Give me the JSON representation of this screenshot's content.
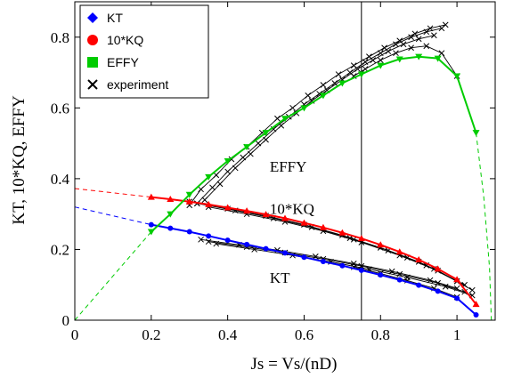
{
  "chart_data": {
    "type": "line",
    "xlabel": "Js = Vs/(nD)",
    "ylabel": "KT,  10*KQ,  EFFY",
    "xlim": [
      0,
      1.1
    ],
    "ylim": [
      0,
      0.9
    ],
    "x_ticks": [
      "0",
      "0.2",
      "0.4",
      "0.6",
      "0.8",
      "1"
    ],
    "y_ticks": [
      "0",
      "0.2",
      "0.4",
      "0.6",
      "0.8"
    ],
    "legend": {
      "placement": "top-left",
      "entries": [
        {
          "label": "KT",
          "color": "#0000ff",
          "marker": "diamond"
        },
        {
          "label": "10*KQ",
          "color": "#ff0000",
          "marker": "circle"
        },
        {
          "label": "EFFY",
          "color": "#00cc00",
          "marker": "square"
        },
        {
          "label": "experiment",
          "color": "#000000",
          "marker": "x"
        }
      ]
    },
    "annotations": [
      {
        "text": "EFFY",
        "x": 0.51,
        "y": 0.42
      },
      {
        "text": "10*KQ",
        "x": 0.51,
        "y": 0.3
      },
      {
        "text": "KT",
        "x": 0.51,
        "y": 0.105
      }
    ],
    "vline_x": 0.75,
    "series": [
      {
        "name": "KT",
        "color": "#0000ff",
        "x": [
          0.2,
          0.25,
          0.3,
          0.35,
          0.4,
          0.45,
          0.5,
          0.55,
          0.6,
          0.65,
          0.7,
          0.75,
          0.8,
          0.85,
          0.9,
          0.95,
          1.0,
          1.05
        ],
        "y": [
          0.27,
          0.26,
          0.25,
          0.238,
          0.226,
          0.214,
          0.202,
          0.19,
          0.178,
          0.166,
          0.154,
          0.141,
          0.128,
          0.114,
          0.099,
          0.082,
          0.062,
          0.015
        ],
        "extrap_x": [
          0,
          0.2
        ],
        "extrap_y": [
          0.32,
          0.27
        ]
      },
      {
        "name": "10*KQ",
        "color": "#ff0000",
        "x": [
          0.2,
          0.25,
          0.3,
          0.35,
          0.4,
          0.45,
          0.5,
          0.55,
          0.6,
          0.65,
          0.7,
          0.75,
          0.8,
          0.85,
          0.9,
          0.95,
          1.0,
          1.05
        ],
        "y": [
          0.348,
          0.342,
          0.335,
          0.327,
          0.318,
          0.309,
          0.299,
          0.288,
          0.275,
          0.262,
          0.247,
          0.231,
          0.213,
          0.193,
          0.171,
          0.145,
          0.115,
          0.045
        ],
        "extrap_x": [
          0,
          0.2
        ],
        "extrap_y": [
          0.372,
          0.348
        ]
      },
      {
        "name": "EFFY",
        "color": "#00cc00",
        "x": [
          0.2,
          0.25,
          0.3,
          0.35,
          0.4,
          0.45,
          0.5,
          0.55,
          0.6,
          0.65,
          0.7,
          0.75,
          0.8,
          0.85,
          0.9,
          0.95,
          1.0,
          1.05
        ],
        "y": [
          0.25,
          0.3,
          0.355,
          0.405,
          0.45,
          0.49,
          0.53,
          0.57,
          0.6,
          0.635,
          0.67,
          0.695,
          0.72,
          0.738,
          0.745,
          0.74,
          0.69,
          0.53
        ],
        "extrap_x": [
          0,
          0.2
        ],
        "extrap_y": [
          0,
          0.25
        ],
        "tail_x": [
          1.05,
          1.07,
          1.085,
          1.09
        ],
        "tail_y": [
          0.53,
          0.35,
          0.15,
          0
        ]
      },
      {
        "name": "experiment",
        "color": "#000000",
        "runs": [
          {
            "effy_x": [
              0.3,
              0.33,
              0.37,
              0.41,
              0.45,
              0.49,
              0.53,
              0.57,
              0.61,
              0.65,
              0.69,
              0.73,
              0.77,
              0.81,
              0.85,
              0.89,
              0.93,
              0.97
            ],
            "effy_y": [
              0.325,
              0.37,
              0.41,
              0.455,
              0.49,
              0.53,
              0.57,
              0.6,
              0.635,
              0.665,
              0.695,
              0.72,
              0.745,
              0.77,
              0.79,
              0.81,
              0.825,
              0.835
            ],
            "kq_x": [
              0.3,
              0.4,
              0.5,
              0.6,
              0.7,
              0.8,
              0.9,
              1.0
            ],
            "kq_y": [
              0.335,
              0.315,
              0.295,
              0.27,
              0.24,
              0.205,
              0.165,
              0.11
            ],
            "kt_x": [
              0.33,
              0.43,
              0.53,
              0.63,
              0.73,
              0.83,
              0.93,
              1.0
            ],
            "kt_y": [
              0.228,
              0.213,
              0.198,
              0.18,
              0.16,
              0.138,
              0.113,
              0.09
            ]
          },
          {
            "effy_x": [
              0.32,
              0.36,
              0.4,
              0.44,
              0.48,
              0.52,
              0.56,
              0.6,
              0.64,
              0.68,
              0.72,
              0.76,
              0.8,
              0.84,
              0.88,
              0.92,
              0.96
            ],
            "effy_y": [
              0.33,
              0.375,
              0.42,
              0.46,
              0.5,
              0.54,
              0.575,
              0.61,
              0.64,
              0.67,
              0.7,
              0.73,
              0.755,
              0.78,
              0.8,
              0.815,
              0.825
            ],
            "kq_x": [
              0.32,
              0.42,
              0.52,
              0.62,
              0.72,
              0.82,
              0.92,
              1.02
            ],
            "kq_y": [
              0.33,
              0.31,
              0.288,
              0.263,
              0.232,
              0.197,
              0.155,
              0.1
            ],
            "kt_x": [
              0.35,
              0.45,
              0.55,
              0.65,
              0.75,
              0.85,
              0.95,
              1.02
            ],
            "kt_y": [
              0.222,
              0.207,
              0.191,
              0.173,
              0.153,
              0.13,
              0.105,
              0.08
            ]
          },
          {
            "effy_x": [
              0.34,
              0.38,
              0.42,
              0.46,
              0.5,
              0.54,
              0.58,
              0.62,
              0.66,
              0.7,
              0.74,
              0.78,
              0.82,
              0.86,
              0.9,
              0.94
            ],
            "effy_y": [
              0.34,
              0.385,
              0.43,
              0.47,
              0.51,
              0.55,
              0.585,
              0.62,
              0.65,
              0.68,
              0.71,
              0.735,
              0.76,
              0.78,
              0.795,
              0.805
            ],
            "kq_x": [
              0.35,
              0.45,
              0.55,
              0.65,
              0.75,
              0.85,
              0.95,
              1.04
            ],
            "kq_y": [
              0.32,
              0.3,
              0.278,
              0.252,
              0.22,
              0.183,
              0.14,
              0.085
            ],
            "kt_x": [
              0.37,
              0.47,
              0.57,
              0.67,
              0.77,
              0.87,
              0.97,
              1.04
            ],
            "kt_y": [
              0.216,
              0.2,
              0.183,
              0.165,
              0.144,
              0.121,
              0.095,
              0.07
            ]
          },
          {
            "effy_x": [
              0.73,
              0.76,
              0.8,
              0.84,
              0.88,
              0.92,
              0.96,
              1.0
            ],
            "effy_y": [
              0.69,
              0.71,
              0.735,
              0.755,
              0.77,
              0.775,
              0.755,
              0.69
            ],
            "kq_x": [
              0.73,
              0.8,
              0.87,
              0.94,
              1.0
            ],
            "kq_y": [
              0.228,
              0.205,
              0.177,
              0.145,
              0.11
            ],
            "kt_x": [
              0.73,
              0.8,
              0.87,
              0.94,
              1.0
            ],
            "kt_y": [
              0.15,
              0.132,
              0.112,
              0.09,
              0.065
            ]
          }
        ]
      }
    ]
  }
}
